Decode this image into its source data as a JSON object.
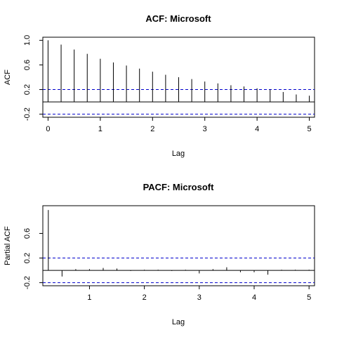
{
  "chart_data": [
    {
      "type": "bar",
      "title": "ACF: Microsoft",
      "xlabel": "Lag",
      "ylabel": "ACF",
      "xlim": [
        -0.1,
        5.1
      ],
      "ylim": [
        -0.25,
        1.05
      ],
      "xticks": [
        0,
        1,
        2,
        3,
        4,
        5
      ],
      "xtick_labels": [
        "0",
        "1",
        "2",
        "3",
        "4",
        "5"
      ],
      "yticks": [
        -0.2,
        0.2,
        0.6,
        1.0
      ],
      "ytick_labels": [
        "-0.2",
        "0.2",
        "0.6",
        "1.0"
      ],
      "x": [
        0,
        0.25,
        0.5,
        0.75,
        1.0,
        1.25,
        1.5,
        1.75,
        2.0,
        2.25,
        2.5,
        2.75,
        3.0,
        3.25,
        3.5,
        3.75,
        4.0,
        4.25,
        4.5,
        4.75,
        5.0
      ],
      "values": [
        1.0,
        0.93,
        0.85,
        0.78,
        0.7,
        0.64,
        0.59,
        0.54,
        0.49,
        0.44,
        0.4,
        0.37,
        0.33,
        0.3,
        0.27,
        0.25,
        0.22,
        0.2,
        0.16,
        0.12,
        0.1
      ],
      "conf_bounds": [
        0.2,
        -0.2
      ],
      "conf_color": "#0000cc",
      "grid": false
    },
    {
      "type": "bar",
      "title": "PACF: Microsoft",
      "xlabel": "Lag",
      "ylabel": "Partial ACF",
      "xlim": [
        0.15,
        5.1
      ],
      "ylim": [
        -0.25,
        1.05
      ],
      "xticks": [
        1,
        2,
        3,
        4,
        5
      ],
      "xtick_labels": [
        "1",
        "2",
        "3",
        "4",
        "5"
      ],
      "yticks": [
        -0.2,
        0.2,
        0.6
      ],
      "ytick_labels": [
        "-0.2",
        "0.2",
        "0.6"
      ],
      "x": [
        0.25,
        0.5,
        0.75,
        1.0,
        1.25,
        1.5,
        1.75,
        2.0,
        2.25,
        2.5,
        2.75,
        3.0,
        3.25,
        3.5,
        3.75,
        4.0,
        4.25,
        4.5,
        4.75,
        5.0
      ],
      "values": [
        0.98,
        -0.1,
        0.02,
        0.02,
        0.04,
        0.03,
        -0.01,
        0.01,
        0.01,
        -0.01,
        0.01,
        -0.05,
        0.02,
        0.05,
        -0.03,
        -0.03,
        -0.07,
        0.01,
        0.01,
        0.01
      ],
      "conf_bounds": [
        0.2,
        -0.2
      ],
      "conf_color": "#0000cc",
      "grid": false
    }
  ]
}
